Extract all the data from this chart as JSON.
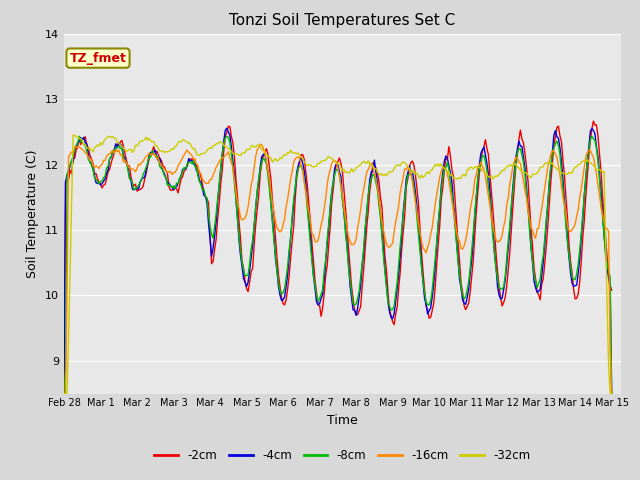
{
  "title": "Tonzi Soil Temperatures Set C",
  "xlabel": "Time",
  "ylabel": "Soil Temperature (C)",
  "ylim": [
    8.5,
    14.0
  ],
  "annotation_label": "TZ_fmet",
  "annotation_color": "#cc0000",
  "annotation_bg": "#ffffcc",
  "annotation_border": "#888800",
  "fig_bg": "#d8d8d8",
  "plot_bg": "#e8e8e8",
  "series_colors": {
    "-2cm": "#ee0000",
    "-4cm": "#0000dd",
    "-8cm": "#00bb00",
    "-16cm": "#ff8800",
    "-32cm": "#cccc00"
  },
  "x_tick_labels": [
    "Feb 28",
    "Mar 1",
    "Mar 2",
    "Mar 3",
    "Mar 4",
    "Mar 5",
    "Mar 6",
    "Mar 7",
    "Mar 8",
    "Mar 9",
    "Mar 10",
    "Mar 11",
    "Mar 12",
    "Mar 13",
    "Mar 14",
    "Mar 15"
  ],
  "grid_color": "#ffffff",
  "linewidth": 1.0
}
